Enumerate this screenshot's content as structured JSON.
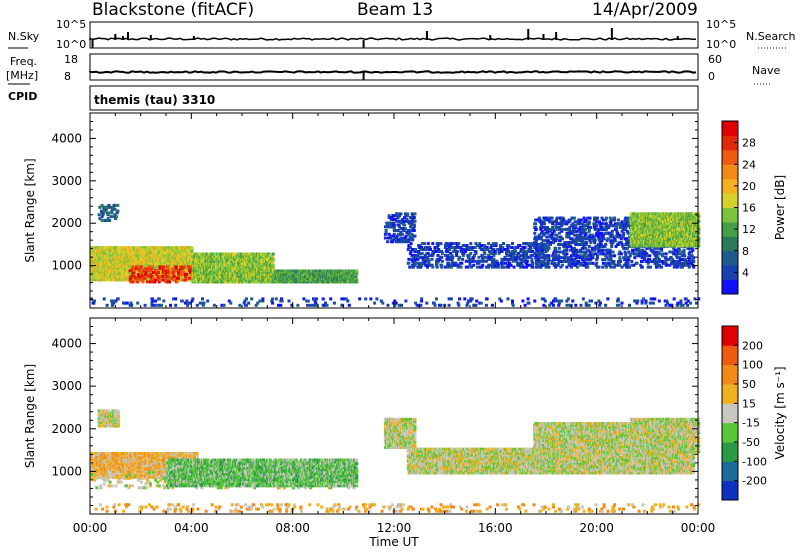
{
  "header": {
    "station": "Blackstone (fitACF)",
    "beam": "Beam 13",
    "date": "14/Apr/2009"
  },
  "status_panels": {
    "nsky_label": "N.Sky",
    "nsky_ticks": [
      "10^5",
      "10^0"
    ],
    "nsearch_label": "N.Search",
    "nsearch_ticks": [
      "10^5",
      "10^0"
    ],
    "freq_label": "Freq.",
    "freq_unit": "[MHz]",
    "freq_ticks": [
      "18",
      "8"
    ],
    "nave_label": "Nave",
    "nave_ticks": [
      "60",
      "0"
    ],
    "cpid_label": "CPID",
    "cpid_value": "themis (tau) 3310"
  },
  "chart_data": [
    {
      "type": "heatmap",
      "name": "power",
      "ylabel": "Slant Range [km]",
      "ylim": [
        0,
        4600
      ],
      "yticks": [
        1000,
        2000,
        3000,
        4000
      ],
      "xlim": [
        0,
        24
      ],
      "colorbar": {
        "label": "Power [dB]",
        "ticks": [
          "28",
          "24",
          "20",
          "16",
          "12",
          "8",
          "4"
        ],
        "colors": [
          "#1010ff",
          "#1840b0",
          "#1e5a8c",
          "#2c7a5a",
          "#43a047",
          "#7cc23a",
          "#d6d22a",
          "#f5b020",
          "#f28a18",
          "#ef5a10",
          "#e02a0a",
          "#e00000"
        ]
      },
      "scatter_regions": [
        {
          "x": [
            0.3,
            1.1
          ],
          "y": [
            2100,
            2500
          ],
          "level": 2
        },
        {
          "x": [
            0.0,
            4.0
          ],
          "y": [
            700,
            1500
          ],
          "level": 6
        },
        {
          "x": [
            1.5,
            4.2
          ],
          "y": [
            650,
            1050
          ],
          "level": 10
        },
        {
          "x": [
            4.0,
            7.2
          ],
          "y": [
            650,
            1350
          ],
          "level": 5
        },
        {
          "x": [
            7.2,
            10.5
          ],
          "y": [
            650,
            950
          ],
          "level": 4
        },
        {
          "x": [
            11.6,
            12.8
          ],
          "y": [
            1600,
            2300
          ],
          "level": 1
        },
        {
          "x": [
            12.5,
            18.0
          ],
          "y": [
            1000,
            1600
          ],
          "level": 1
        },
        {
          "x": [
            17.5,
            23.8
          ],
          "y": [
            1000,
            2200
          ],
          "level": 1
        },
        {
          "x": [
            21.3,
            24.0
          ],
          "y": [
            1500,
            2300
          ],
          "level": 5
        },
        {
          "x": [
            0.0,
            24.0
          ],
          "y": [
            100,
            300
          ],
          "level": 1
        }
      ]
    },
    {
      "type": "heatmap",
      "name": "velocity",
      "ylabel": "Slant Range [km]",
      "ylim": [
        0,
        4600
      ],
      "yticks": [
        1000,
        2000,
        3000,
        4000
      ],
      "xlim": [
        0,
        24
      ],
      "xticks": [
        "00:00",
        "04:00",
        "08:00",
        "12:00",
        "16:00",
        "20:00",
        "00:00"
      ],
      "xlabel": "Time UT",
      "colorbar": {
        "label": "Velocity [m s⁻¹]",
        "ticks": [
          "200",
          "100",
          "50",
          "15",
          "-15",
          "-50",
          "-100",
          "-200"
        ],
        "colors": [
          "#1030c0",
          "#1a6a9a",
          "#2c9a44",
          "#58c838",
          "#c8c8c0",
          "#f0b020",
          "#f28a18",
          "#ef5a10",
          "#e00000"
        ]
      },
      "scatter_regions": [
        {
          "x": [
            0.3,
            1.1
          ],
          "y": [
            2100,
            2500
          ],
          "level": 4
        },
        {
          "x": [
            0.0,
            4.2
          ],
          "y": [
            900,
            1500
          ],
          "level": 5
        },
        {
          "x": [
            0.0,
            10.5
          ],
          "y": [
            650,
            1050
          ],
          "level": 4
        },
        {
          "x": [
            3.0,
            10.5
          ],
          "y": [
            700,
            1350
          ],
          "level": 3
        },
        {
          "x": [
            11.6,
            12.8
          ],
          "y": [
            1600,
            2300
          ],
          "level": 4
        },
        {
          "x": [
            12.5,
            18.0
          ],
          "y": [
            1000,
            1600
          ],
          "level": 4
        },
        {
          "x": [
            17.5,
            23.8
          ],
          "y": [
            1000,
            2200
          ],
          "level": 4
        },
        {
          "x": [
            21.3,
            24.0
          ],
          "y": [
            1500,
            2300
          ],
          "level": 4
        },
        {
          "x": [
            0.0,
            24.0
          ],
          "y": [
            100,
            300
          ],
          "level": 5
        }
      ]
    }
  ]
}
